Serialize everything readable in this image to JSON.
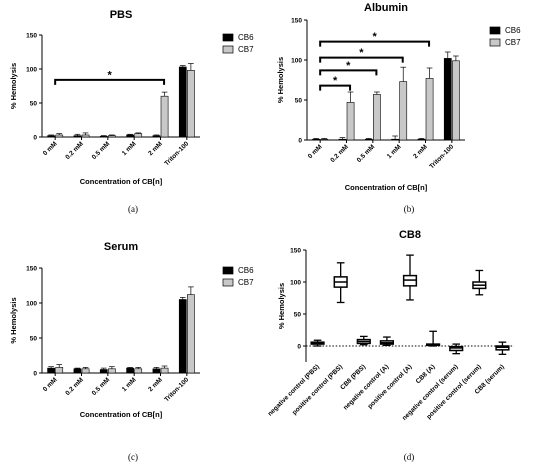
{
  "chart_data": [
    {
      "type": "bar",
      "title": "PBS",
      "panel": "(a)",
      "ylabel": "% Hemolysis",
      "xlabel": "Concentration of CB[n]",
      "ylim": [
        0,
        150
      ],
      "yticks": [
        0,
        50,
        100,
        150
      ],
      "categories": [
        "0 mM",
        "0.2 mM",
        "0.5 mM",
        "1 mM",
        "2 mM",
        "Triton-100"
      ],
      "series": [
        {
          "name": "CB6",
          "color": "#000000",
          "values": [
            2,
            2,
            1,
            3,
            2,
            103
          ],
          "errors": [
            1,
            2,
            1,
            1,
            1,
            2
          ]
        },
        {
          "name": "CB7",
          "color": "#c8c8c8",
          "values": [
            3,
            3,
            2,
            5,
            60,
            98
          ],
          "errors": [
            2,
            3,
            1,
            1,
            6,
            10
          ]
        }
      ],
      "annotations": [
        {
          "text": "*",
          "from": "0 mM",
          "to": "2 mM",
          "y": 84
        }
      ]
    },
    {
      "type": "bar",
      "title": "Albumin",
      "panel": "(b)",
      "ylabel": "% Hemolysis",
      "xlabel": "Concentration of CB[n]",
      "ylim": [
        0,
        150
      ],
      "yticks": [
        0,
        50,
        100,
        150
      ],
      "categories": [
        "0 mM",
        "0.2 mM",
        "0.5 mM",
        "1 mM",
        "2 mM",
        "Triton-100"
      ],
      "series": [
        {
          "name": "CB6",
          "color": "#000000",
          "values": [
            1,
            1,
            1,
            1,
            1,
            102
          ],
          "errors": [
            1,
            2,
            1,
            4,
            1,
            8
          ]
        },
        {
          "name": "CB7",
          "color": "#c8c8c8",
          "values": [
            1,
            47,
            57,
            73,
            77,
            99
          ],
          "errors": [
            1,
            13,
            3,
            18,
            13,
            6
          ]
        }
      ],
      "annotations": [
        {
          "text": "*",
          "from": "0 mM",
          "to": "0.2 mM",
          "y": 68
        },
        {
          "text": "*",
          "from": "0 mM",
          "to": "0.5 mM",
          "y": 87
        },
        {
          "text": "*",
          "from": "0 mM",
          "to": "1 mM",
          "y": 103
        },
        {
          "text": "*",
          "from": "0 mM",
          "to": "2 mM",
          "y": 123
        }
      ]
    },
    {
      "type": "bar",
      "title": "Serum",
      "panel": "(c)",
      "ylabel": "% Hemolysis",
      "xlabel": "Concentration of CB[n]",
      "ylim": [
        0,
        150
      ],
      "yticks": [
        0,
        50,
        100,
        150
      ],
      "categories": [
        "0 mM",
        "0.2 mM",
        "0.5 mM",
        "1 mM",
        "2 mM",
        "Triton-100"
      ],
      "series": [
        {
          "name": "CB6",
          "color": "#000000",
          "values": [
            7,
            6,
            5,
            7,
            6,
            105
          ],
          "errors": [
            2,
            1,
            2,
            1,
            2,
            3
          ]
        },
        {
          "name": "CB7",
          "color": "#c8c8c8",
          "values": [
            8,
            6,
            6,
            6,
            7,
            112
          ],
          "errors": [
            4,
            2,
            3,
            2,
            3,
            11
          ]
        }
      ],
      "annotations": []
    },
    {
      "type": "box",
      "title": "CB8",
      "panel": "(d)",
      "ylabel": "% Hemolysis",
      "ylim": [
        -25,
        150
      ],
      "yticks": [
        0,
        50,
        100,
        150
      ],
      "reference_line": 0,
      "categories": [
        "negative control (PBS)",
        "positive control (PBS)",
        "CB8 (PBS)",
        "negative control (A)",
        "positive control (A)",
        "CB8 (A)",
        "negative control (serum)",
        "positive control (serum)",
        "CB8 (serum)"
      ],
      "boxes": [
        {
          "min": 0,
          "q1": 3,
          "median": 5,
          "q3": 6,
          "max": 9
        },
        {
          "min": 68,
          "q1": 92,
          "median": 100,
          "q3": 108,
          "max": 130
        },
        {
          "min": 2,
          "q1": 4,
          "median": 7,
          "q3": 10,
          "max": 15
        },
        {
          "min": 1,
          "q1": 3,
          "median": 5,
          "q3": 8,
          "max": 14
        },
        {
          "min": 72,
          "q1": 94,
          "median": 103,
          "q3": 110,
          "max": 142
        },
        {
          "min": 0,
          "q1": 1,
          "median": 2,
          "q3": 3,
          "max": 23
        },
        {
          "min": -12,
          "q1": -7,
          "median": -3,
          "q3": -1,
          "max": 3
        },
        {
          "min": 80,
          "q1": 90,
          "median": 95,
          "q3": 100,
          "max": 118
        },
        {
          "min": -13,
          "q1": -6,
          "median": -2,
          "q3": 0,
          "max": 6
        }
      ]
    }
  ]
}
